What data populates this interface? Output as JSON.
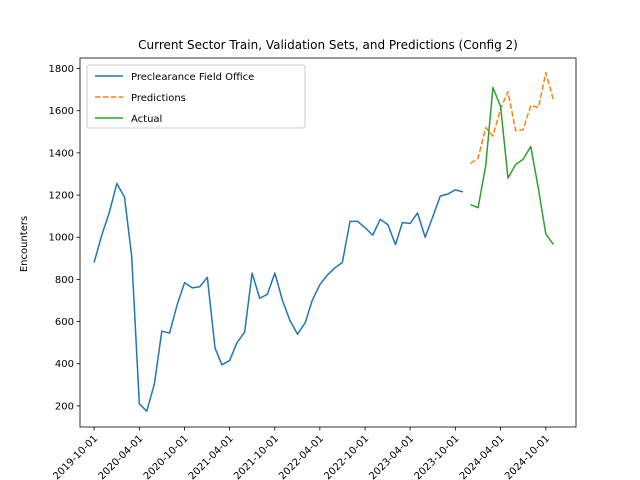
{
  "chart_data": {
    "type": "line",
    "title": "Current Sector Train, Validation Sets, and Predictions (Config 2)",
    "xlabel": "",
    "ylabel": "Encounters",
    "ylim": [
      100,
      1850
    ],
    "yticks": [
      200,
      400,
      600,
      800,
      1000,
      1200,
      1400,
      1600,
      1800
    ],
    "x_tick_values": [
      "2019-10-01",
      "2020-04-01",
      "2020-10-01",
      "2021-04-01",
      "2021-10-01",
      "2022-04-01",
      "2022-10-01",
      "2023-04-01",
      "2023-10-01",
      "2024-04-01",
      "2024-10-01"
    ],
    "x_tick_labels": [
      "2019-10-01",
      "2020-04-01",
      "2020-10-01",
      "2021-04-01",
      "2021-10-01",
      "2022-04-01",
      "2022-10-01",
      "2023-04-01",
      "2023-10-01",
      "2024-04-01",
      "2024-10-01"
    ],
    "xlim": [
      "2019-08-05",
      "2025-01-31"
    ],
    "grid": false,
    "legend_position": "top-left",
    "series": [
      {
        "name": "Preclearance Field Office",
        "color": "#1f77b4",
        "dash": "solid",
        "x": [
          "2019-10-01",
          "2019-11-01",
          "2019-12-01",
          "2020-01-01",
          "2020-02-01",
          "2020-03-01",
          "2020-04-01",
          "2020-05-01",
          "2020-06-01",
          "2020-07-01",
          "2020-08-01",
          "2020-09-01",
          "2020-10-01",
          "2020-11-01",
          "2020-12-01",
          "2021-01-01",
          "2021-02-01",
          "2021-03-01",
          "2021-04-01",
          "2021-05-01",
          "2021-06-01",
          "2021-07-01",
          "2021-08-01",
          "2021-09-01",
          "2021-10-01",
          "2021-11-01",
          "2021-12-01",
          "2022-01-01",
          "2022-02-01",
          "2022-03-01",
          "2022-04-01",
          "2022-05-01",
          "2022-06-01",
          "2022-07-01",
          "2022-08-01",
          "2022-09-01",
          "2022-10-01",
          "2022-11-01",
          "2022-12-01",
          "2023-01-01",
          "2023-02-01",
          "2023-03-01",
          "2023-04-01",
          "2023-05-01",
          "2023-06-01",
          "2023-07-01",
          "2023-08-01",
          "2023-09-01",
          "2023-10-01",
          "2023-11-01"
        ],
        "values": [
          880,
          1010,
          1115,
          1255,
          1190,
          910,
          210,
          175,
          305,
          555,
          545,
          680,
          785,
          760,
          765,
          810,
          475,
          395,
          415,
          500,
          550,
          830,
          710,
          730,
          830,
          700,
          605,
          540,
          595,
          700,
          775,
          820,
          855,
          880,
          1075,
          1075,
          1045,
          1010,
          1085,
          1060,
          965,
          1070,
          1065,
          1115,
          1000,
          1095,
          1195,
          1205,
          1225,
          1215
        ]
      },
      {
        "name": "Predictions",
        "color": "#ff7f0e",
        "dash": "dashed",
        "x": [
          "2023-12-01",
          "2024-01-01",
          "2024-02-01",
          "2024-03-01",
          "2024-04-01",
          "2024-05-01",
          "2024-06-01",
          "2024-07-01",
          "2024-08-01",
          "2024-09-01",
          "2024-10-01",
          "2024-11-01"
        ],
        "values": [
          1350,
          1375,
          1520,
          1480,
          1610,
          1690,
          1505,
          1510,
          1625,
          1615,
          1780,
          1650
        ]
      },
      {
        "name": "Actual",
        "color": "#2ca02c",
        "dash": "solid",
        "x": [
          "2023-12-01",
          "2024-01-01",
          "2024-02-01",
          "2024-03-01",
          "2024-04-01",
          "2024-05-01",
          "2024-06-01",
          "2024-07-01",
          "2024-08-01",
          "2024-09-01",
          "2024-10-01",
          "2024-11-01"
        ],
        "values": [
          1155,
          1140,
          1340,
          1710,
          1620,
          1280,
          1345,
          1370,
          1430,
          1230,
          1015,
          965
        ]
      }
    ]
  }
}
